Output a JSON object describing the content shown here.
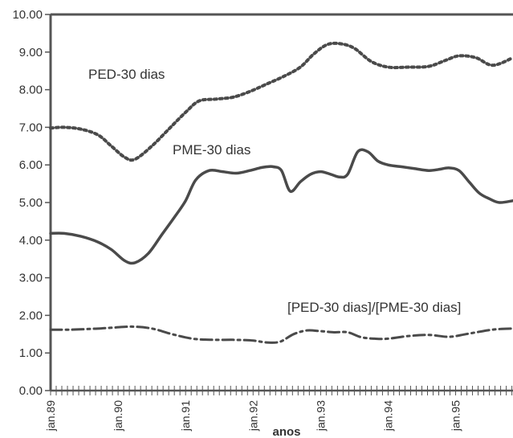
{
  "chart_data": {
    "type": "line",
    "title": "",
    "xlabel": "anos",
    "ylabel": "",
    "ylim": [
      0,
      10
    ],
    "xlim": [
      1989.0,
      1995.85
    ],
    "grid": false,
    "yticks": [
      "0.00",
      "1.00",
      "2.00",
      "3.00",
      "4.00",
      "5.00",
      "6.00",
      "7.00",
      "8.00",
      "9.00",
      "10.00"
    ],
    "xticks": [
      {
        "x": 1989.0,
        "label": "jan.89"
      },
      {
        "x": 1990.0,
        "label": "jan.90"
      },
      {
        "x": 1991.0,
        "label": "jan.91"
      },
      {
        "x": 1992.0,
        "label": "jan.92"
      },
      {
        "x": 1993.0,
        "label": "jan.93"
      },
      {
        "x": 1994.0,
        "label": "jan.94"
      },
      {
        "x": 1995.0,
        "label": "jan.95"
      }
    ],
    "series": [
      {
        "name": "PED-30 dias",
        "style": "dotted",
        "x": [
          1989.0,
          1989.2,
          1989.45,
          1989.7,
          1989.9,
          1990.1,
          1990.25,
          1990.5,
          1990.75,
          1991.0,
          1991.2,
          1991.45,
          1991.7,
          1991.95,
          1992.2,
          1992.45,
          1992.7,
          1992.9,
          1993.1,
          1993.3,
          1993.5,
          1993.75,
          1994.0,
          1994.3,
          1994.6,
          1994.85,
          1995.05,
          1995.3,
          1995.55,
          1995.85
        ],
        "values": [
          6.98,
          7.0,
          6.95,
          6.8,
          6.5,
          6.2,
          6.15,
          6.5,
          6.95,
          7.4,
          7.7,
          7.75,
          7.8,
          7.95,
          8.15,
          8.35,
          8.6,
          8.95,
          9.2,
          9.22,
          9.1,
          8.75,
          8.6,
          8.6,
          8.62,
          8.78,
          8.9,
          8.85,
          8.65,
          8.85
        ]
      },
      {
        "name": "PME-30 dias",
        "style": "solid",
        "x": [
          1989.0,
          1989.2,
          1989.45,
          1989.7,
          1989.9,
          1990.1,
          1990.25,
          1990.45,
          1990.65,
          1990.85,
          1991.0,
          1991.15,
          1991.35,
          1991.55,
          1991.75,
          1991.95,
          1992.1,
          1992.2,
          1992.3,
          1992.42,
          1992.55,
          1992.7,
          1992.85,
          1993.0,
          1993.15,
          1993.28,
          1993.4,
          1993.55,
          1993.7,
          1993.85,
          1994.0,
          1994.2,
          1994.4,
          1994.6,
          1994.75,
          1994.9,
          1995.05,
          1995.2,
          1995.35,
          1995.5,
          1995.65,
          1995.85
        ],
        "values": [
          4.18,
          4.18,
          4.1,
          3.95,
          3.75,
          3.45,
          3.4,
          3.65,
          4.15,
          4.65,
          5.05,
          5.6,
          5.85,
          5.82,
          5.78,
          5.85,
          5.92,
          5.95,
          5.95,
          5.85,
          5.3,
          5.55,
          5.75,
          5.82,
          5.75,
          5.68,
          5.75,
          6.35,
          6.35,
          6.1,
          6.0,
          5.95,
          5.9,
          5.85,
          5.88,
          5.92,
          5.85,
          5.55,
          5.25,
          5.1,
          5.0,
          5.05
        ]
      },
      {
        "name": "[PED-30 dias]/[PME-30 dias]",
        "style": "dashdot",
        "x": [
          1989.0,
          1989.3,
          1989.6,
          1989.9,
          1990.2,
          1990.5,
          1990.8,
          1991.1,
          1991.4,
          1991.7,
          1992.0,
          1992.2,
          1992.4,
          1992.6,
          1992.8,
          1993.0,
          1993.2,
          1993.4,
          1993.6,
          1993.8,
          1994.0,
          1994.3,
          1994.6,
          1994.9,
          1995.15,
          1995.4,
          1995.6,
          1995.85
        ],
        "values": [
          1.62,
          1.62,
          1.64,
          1.67,
          1.7,
          1.65,
          1.5,
          1.38,
          1.35,
          1.35,
          1.33,
          1.28,
          1.3,
          1.5,
          1.6,
          1.58,
          1.55,
          1.55,
          1.42,
          1.38,
          1.38,
          1.45,
          1.48,
          1.43,
          1.5,
          1.58,
          1.63,
          1.65
        ]
      }
    ]
  }
}
